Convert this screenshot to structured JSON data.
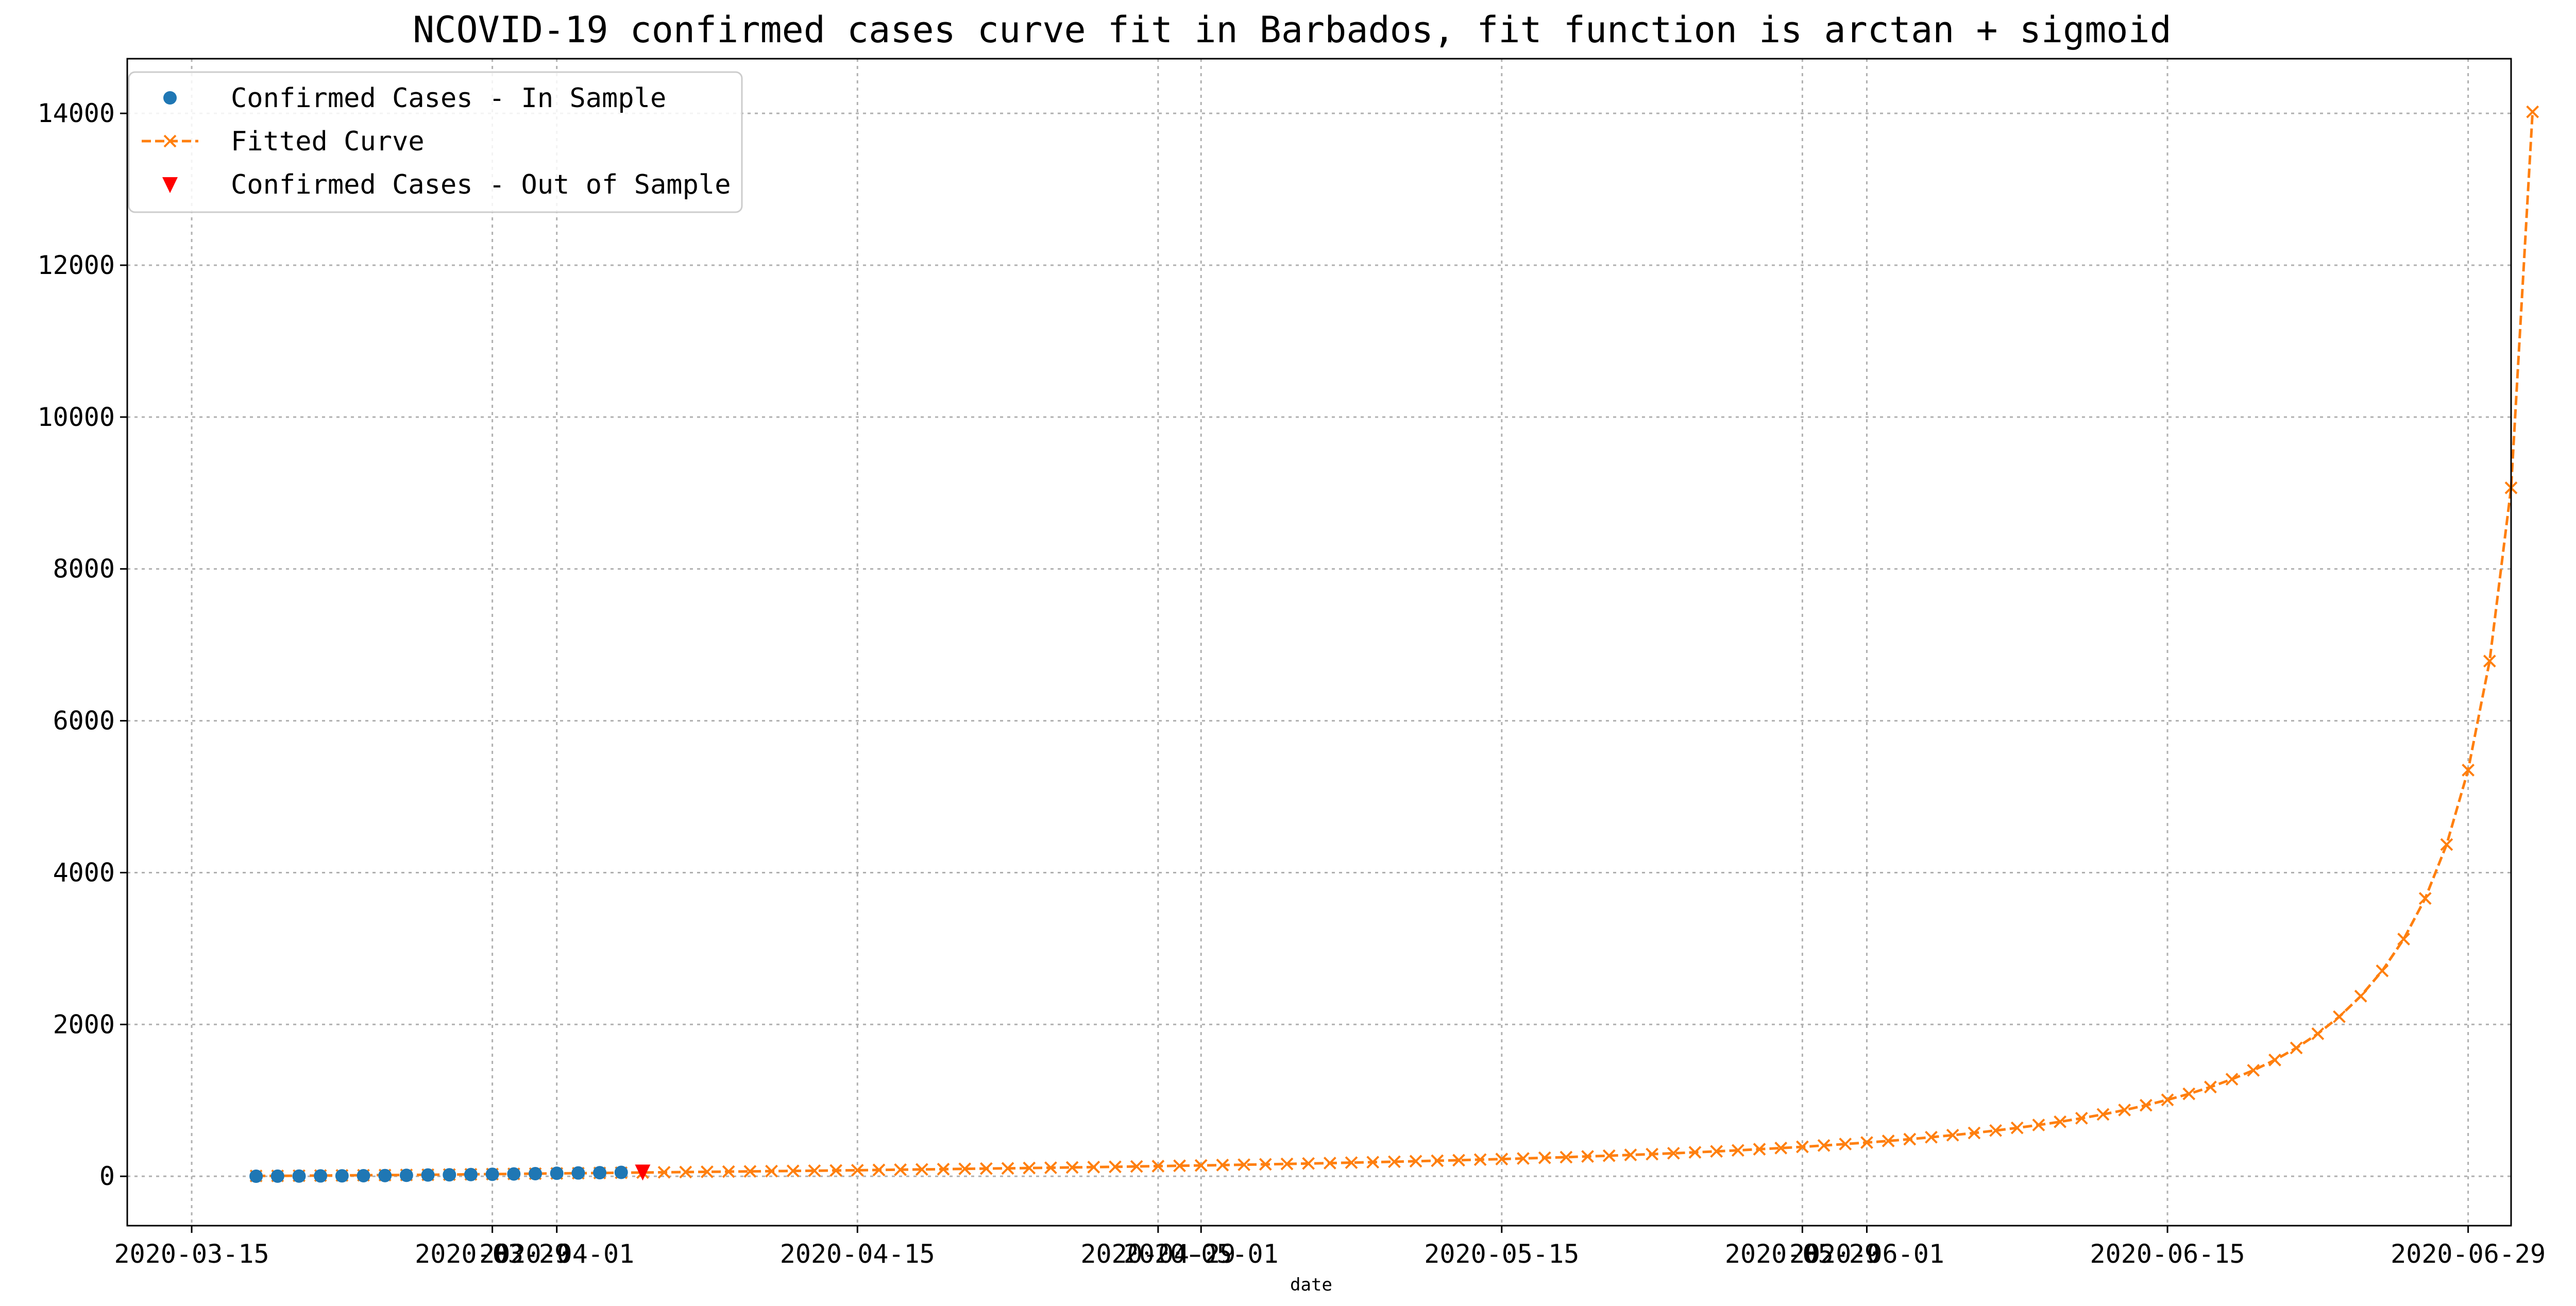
{
  "chart_data": {
    "type": "line",
    "title": "NCOVID-19 confirmed cases curve fit in Barbados, fit function is arctan + sigmoid",
    "xlabel": "date",
    "ylabel": "",
    "x_ticks": [
      "2020-03-15",
      "2020-03-29",
      "2020-04-01",
      "2020-04-15",
      "2020-04-29",
      "2020-05-01",
      "2020-05-15",
      "2020-05-29",
      "2020-06-01",
      "2020-06-15",
      "2020-06-29"
    ],
    "y_ticks": [
      "0",
      "2000",
      "4000",
      "6000",
      "8000",
      "10000",
      "12000",
      "14000"
    ],
    "xlim": [
      "2020-03-12",
      "2020-07-01"
    ],
    "ylim": [
      -650,
      14720
    ],
    "grid": true,
    "legend_position": "upper-left",
    "series": [
      {
        "name": "Confirmed Cases - In Sample",
        "marker": "circle",
        "color": "#1f77b4",
        "x_start": "2020-03-18",
        "values": [
          1,
          2,
          3,
          5,
          6,
          8,
          10,
          13,
          17,
          20,
          23,
          27,
          31,
          35,
          40,
          44,
          48,
          52
        ]
      },
      {
        "name": "Fitted Curve",
        "marker": "x",
        "line_style": "dashed",
        "color": "#ff7f0e",
        "x_start": "2020-03-18",
        "values": [
          5,
          6,
          8,
          10,
          12,
          14,
          16,
          18,
          20,
          23,
          26,
          29,
          32,
          35,
          38,
          41,
          44,
          47,
          50,
          53,
          56,
          59,
          62,
          65,
          68,
          71,
          74,
          77,
          80,
          84,
          87,
          91,
          94,
          98,
          102,
          105,
          109,
          113,
          117,
          121,
          125,
          130,
          134,
          139,
          143,
          148,
          153,
          158,
          163,
          169,
          174,
          180,
          186,
          192,
          199,
          205,
          212,
          220,
          227,
          235,
          244,
          252,
          262,
          271,
          282,
          292,
          304,
          316,
          329,
          342,
          357,
          372,
          388,
          406,
          425,
          445,
          466,
          489,
          515,
          542,
          571,
          603,
          638,
          676,
          718,
          765,
          816,
          873,
          936,
          1007,
          1086,
          1176,
          1279,
          1396,
          1532,
          1691,
          1878,
          2102,
          2373,
          2706,
          3124,
          3660,
          4370,
          5350,
          6786,
          9068,
          14020
        ]
      },
      {
        "name": "Confirmed Cases - Out of Sample",
        "marker": "triangle-down",
        "color": "#ff0000",
        "x": [
          "2020-04-05"
        ],
        "values": [
          60
        ]
      }
    ]
  }
}
